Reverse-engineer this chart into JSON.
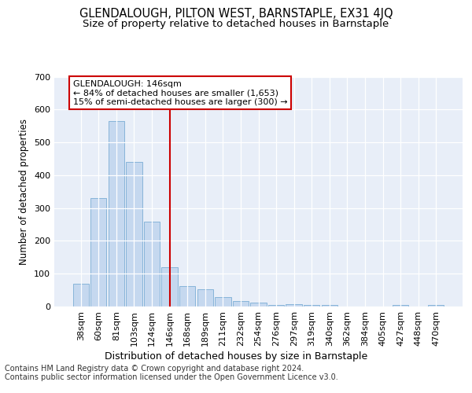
{
  "title": "GLENDALOUGH, PILTON WEST, BARNSTAPLE, EX31 4JQ",
  "subtitle": "Size of property relative to detached houses in Barnstaple",
  "xlabel": "Distribution of detached houses by size in Barnstaple",
  "ylabel": "Number of detached properties",
  "categories": [
    "38sqm",
    "60sqm",
    "81sqm",
    "103sqm",
    "124sqm",
    "146sqm",
    "168sqm",
    "189sqm",
    "211sqm",
    "232sqm",
    "254sqm",
    "276sqm",
    "297sqm",
    "319sqm",
    "340sqm",
    "362sqm",
    "384sqm",
    "405sqm",
    "427sqm",
    "448sqm",
    "470sqm"
  ],
  "values": [
    70,
    330,
    565,
    440,
    258,
    120,
    63,
    53,
    28,
    16,
    12,
    5,
    6,
    5,
    4,
    0,
    0,
    0,
    5,
    0,
    5
  ],
  "bar_color": "#c5d8ef",
  "bar_edge_color": "#7aadd4",
  "highlight_bar_index": 5,
  "highlight_color": "#cc0000",
  "annotation_line1": "GLENDALOUGH: 146sqm",
  "annotation_line2": "← 84% of detached houses are smaller (1,653)",
  "annotation_line3": "15% of semi-detached houses are larger (300) →",
  "annotation_box_color": "#ffffff",
  "annotation_box_edge_color": "#cc0000",
  "ylim": [
    0,
    700
  ],
  "yticks": [
    0,
    100,
    200,
    300,
    400,
    500,
    600,
    700
  ],
  "axes_bg_color": "#e8eef8",
  "grid_color": "#ffffff",
  "footer_line1": "Contains HM Land Registry data © Crown copyright and database right 2024.",
  "footer_line2": "Contains public sector information licensed under the Open Government Licence v3.0.",
  "title_fontsize": 10.5,
  "subtitle_fontsize": 9.5,
  "tick_fontsize": 8,
  "ylabel_fontsize": 8.5,
  "xlabel_fontsize": 9,
  "annotation_fontsize": 8,
  "footer_fontsize": 7
}
